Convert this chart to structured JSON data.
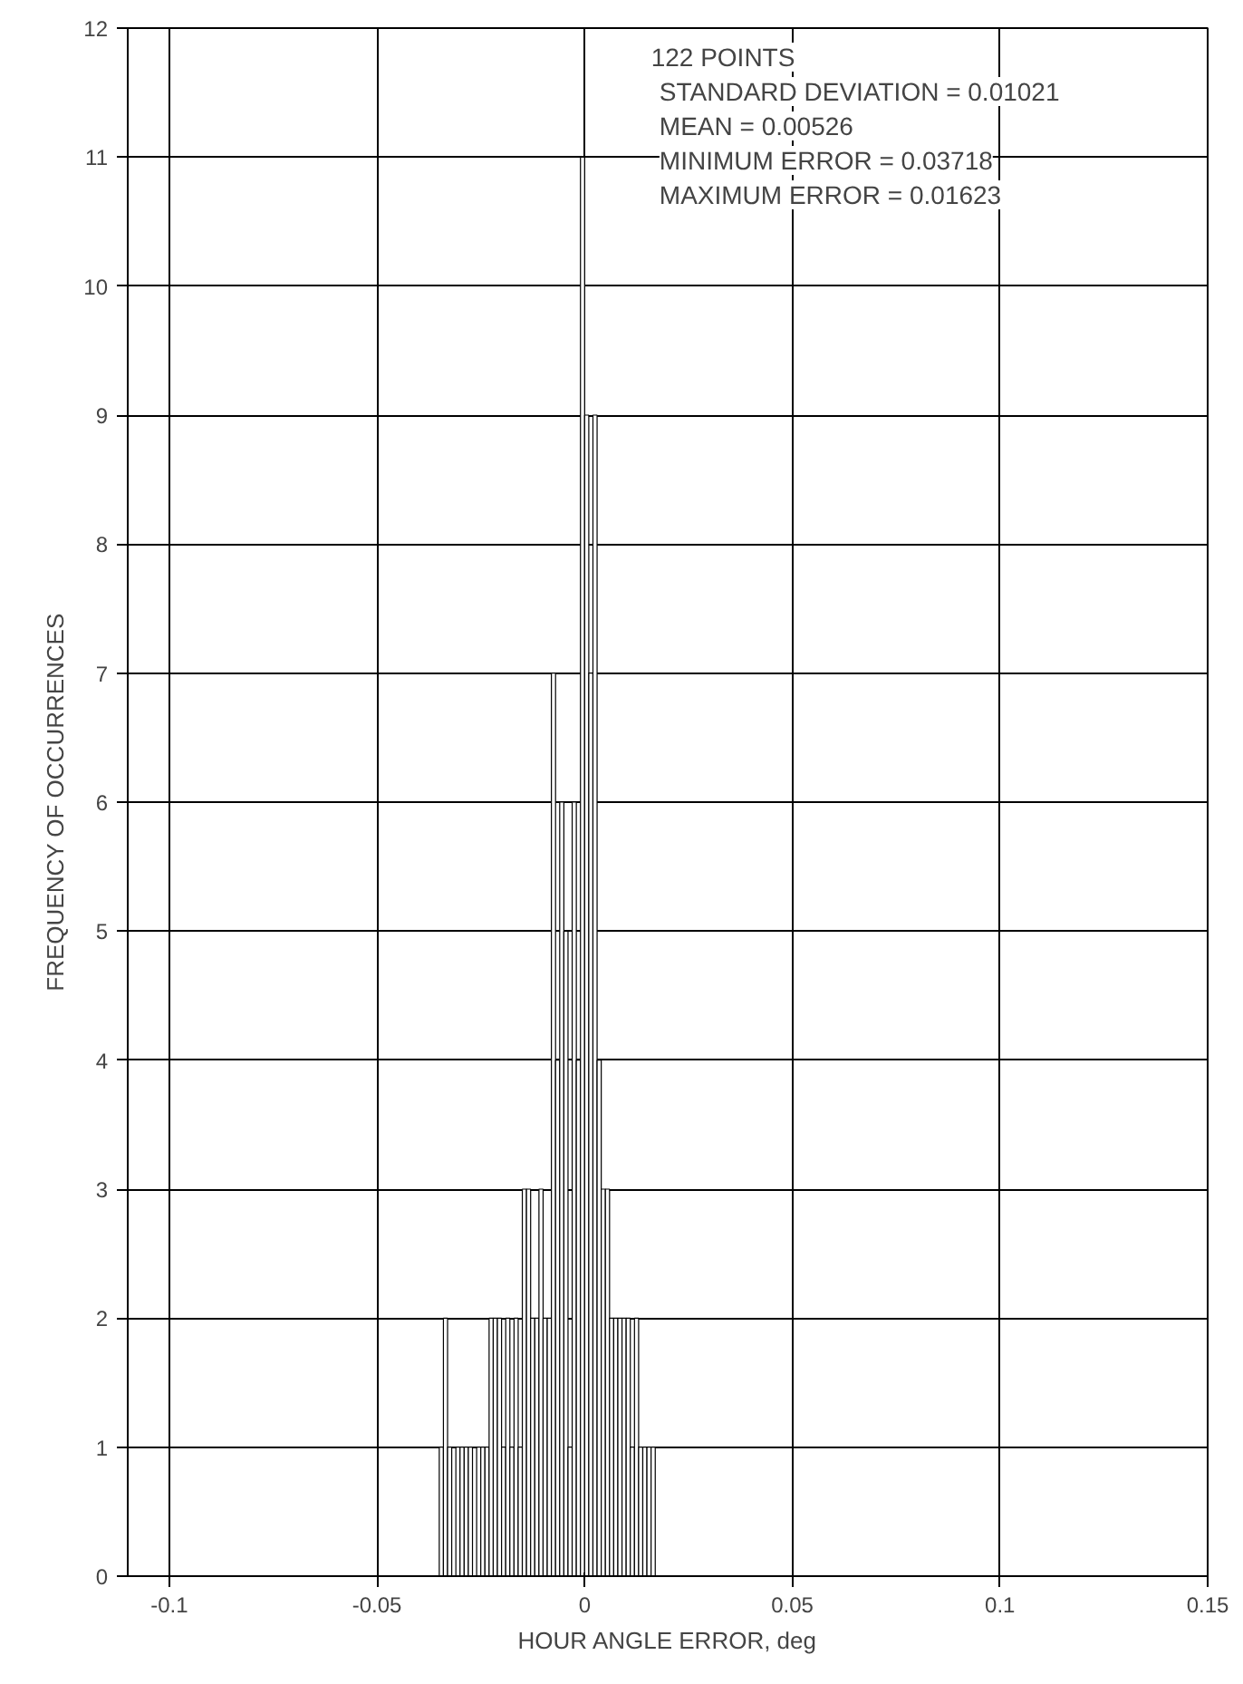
{
  "chart_data": {
    "type": "histogram",
    "xlabel": "HOUR ANGLE ERROR, deg",
    "ylabel": "FREQUENCY OF OCCURRENCES",
    "bins": [
      -0.035,
      -0.034,
      -0.033,
      -0.032,
      -0.031,
      -0.03,
      -0.029,
      -0.028,
      -0.027,
      -0.026,
      -0.025,
      -0.024,
      -0.023,
      -0.022,
      -0.021,
      -0.02,
      -0.019,
      -0.018,
      -0.017,
      -0.016,
      -0.015,
      -0.014,
      -0.013,
      -0.012,
      -0.011,
      -0.01,
      -0.009,
      -0.008,
      -0.007,
      -0.006,
      -0.005,
      -0.004,
      -0.003,
      -0.002,
      -0.001,
      0.0,
      0.001,
      0.002,
      0.003,
      0.004,
      0.005,
      0.006,
      0.007,
      0.008,
      0.009,
      0.01,
      0.011,
      0.012,
      0.013,
      0.014,
      0.015,
      0.016,
      0.017
    ],
    "values": [
      1,
      2,
      1,
      0,
      1,
      1,
      1,
      1,
      0,
      1,
      1,
      1,
      2,
      2,
      2,
      1,
      2,
      1,
      2,
      1,
      3,
      3,
      2,
      2,
      3,
      2,
      2,
      7,
      4,
      6,
      5,
      1,
      6,
      4,
      11,
      9,
      7,
      9,
      4,
      3,
      3,
      2,
      2,
      2,
      2,
      2,
      1,
      2,
      1,
      1,
      1,
      1
    ],
    "color": "#ffffff",
    "xlim": [
      -0.11,
      0.15
    ],
    "ylim": [
      0,
      12
    ],
    "xticks": [
      {
        "value": -0.1,
        "label": "-0.1"
      },
      -0.05,
      0,
      0.05,
      0.1,
      0.15
    ],
    "yticks": [
      0,
      1,
      2,
      3,
      4,
      5,
      6,
      7,
      8,
      9,
      10,
      11,
      12
    ],
    "grid": true,
    "annotations": [
      "122 POINTS",
      "STANDARD DEVIATION = 0.01021",
      "MEAN = 0.00526",
      "MINIMUM ERROR = 0.03718",
      "MAXIMUM ERROR = 0.01623"
    ]
  }
}
